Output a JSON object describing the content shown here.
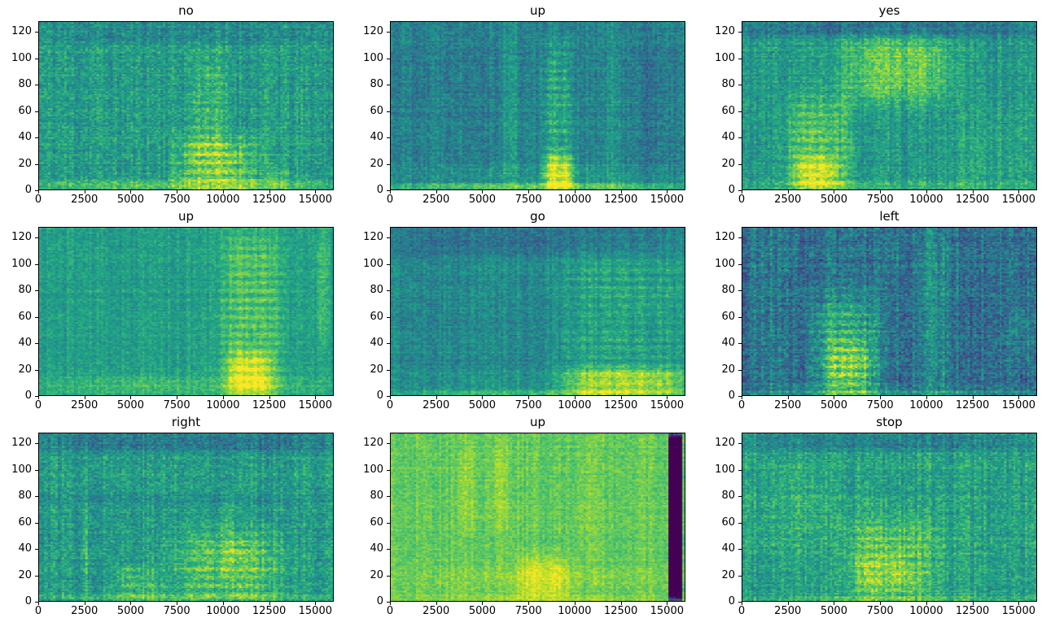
{
  "figure": {
    "background": "#ffffff",
    "colormap": "viridis",
    "rows": 3,
    "cols": 3,
    "colormap_anchors": [
      "#440154",
      "#482475",
      "#414487",
      "#355f8d",
      "#2a788e",
      "#21918c",
      "#22a884",
      "#44bf70",
      "#7ad151",
      "#bddf26",
      "#fde725"
    ]
  },
  "axes_common": {
    "xlim": [
      0,
      16000
    ],
    "ylim": [
      0,
      128
    ],
    "xticks": [
      0,
      2500,
      5000,
      7500,
      10000,
      12500,
      15000
    ],
    "yticks": [
      0,
      20,
      40,
      60,
      80,
      100,
      120
    ]
  },
  "chart_data": [
    {
      "type": "heatmap",
      "title": "no",
      "xlim": [
        0,
        16000
      ],
      "ylim": [
        0,
        128
      ],
      "base": 0.55,
      "noise": 0.13,
      "seed": 11,
      "regions": [
        {
          "x": [
            0,
            16000
          ],
          "y": [
            0,
            7
          ],
          "i": 0.18,
          "soft": 0.3
        },
        {
          "x": [
            7600,
            11800
          ],
          "y": [
            0,
            38
          ],
          "i": 0.3,
          "soft": 0.3,
          "bands": true
        },
        {
          "x": [
            8300,
            10000
          ],
          "y": [
            20,
            100
          ],
          "i": 0.16,
          "soft": 0.3,
          "bands": true
        },
        {
          "x": [
            0,
            16000
          ],
          "y": [
            112,
            128
          ],
          "i": -0.08,
          "soft": 0.3
        },
        {
          "x": [
            12500,
            13500
          ],
          "y": [
            0,
            20
          ],
          "i": 0.1,
          "soft": 0.3
        }
      ]
    },
    {
      "type": "heatmap",
      "title": "up",
      "xlim": [
        0,
        16000
      ],
      "ylim": [
        0,
        128
      ],
      "base": 0.44,
      "noise": 0.11,
      "seed": 22,
      "regions": [
        {
          "x": [
            0,
            16000
          ],
          "y": [
            0,
            5
          ],
          "i": 0.3,
          "soft": 0.3
        },
        {
          "x": [
            8300,
            9900
          ],
          "y": [
            0,
            112
          ],
          "i": 0.22,
          "soft": 0.25,
          "bands": true
        },
        {
          "x": [
            8400,
            9900
          ],
          "y": [
            0,
            26
          ],
          "i": 0.32,
          "soft": 0.3
        },
        {
          "x": [
            6100,
            6900
          ],
          "y": [
            0,
            128
          ],
          "i": 0.1,
          "soft": 0.3
        },
        {
          "x": [
            11600,
            12600
          ],
          "y": [
            0,
            128
          ],
          "i": 0.06,
          "soft": 0.3
        },
        {
          "x": [
            13400,
            15200
          ],
          "y": [
            0,
            128
          ],
          "i": -0.05,
          "soft": 0.3
        },
        {
          "x": [
            0,
            16000
          ],
          "y": [
            5,
            20
          ],
          "i": 0.08,
          "soft": 0.4
        }
      ]
    },
    {
      "type": "heatmap",
      "title": "yes",
      "xlim": [
        0,
        16000
      ],
      "ylim": [
        0,
        128
      ],
      "base": 0.53,
      "noise": 0.12,
      "seed": 33,
      "regions": [
        {
          "x": [
            0,
            16000
          ],
          "y": [
            0,
            6
          ],
          "i": 0.12,
          "soft": 0.3
        },
        {
          "x": [
            2400,
            5900
          ],
          "y": [
            0,
            68
          ],
          "i": 0.26,
          "soft": 0.3,
          "bands": true
        },
        {
          "x": [
            2900,
            5200
          ],
          "y": [
            0,
            24
          ],
          "i": 0.22,
          "soft": 0.3
        },
        {
          "x": [
            5700,
            11200
          ],
          "y": [
            68,
            116
          ],
          "i": 0.22,
          "soft": 0.3
        },
        {
          "x": [
            0,
            16000
          ],
          "y": [
            117,
            128
          ],
          "i": -0.16,
          "soft": 0.3
        },
        {
          "x": [
            11000,
            16000
          ],
          "y": [
            0,
            60
          ],
          "i": 0.05,
          "soft": 0.3
        }
      ]
    },
    {
      "type": "heatmap",
      "title": "up",
      "xlim": [
        0,
        16000
      ],
      "ylim": [
        0,
        128
      ],
      "base": 0.56,
      "noise": 0.09,
      "seed": 44,
      "regions": [
        {
          "x": [
            0,
            16000
          ],
          "y": [
            0,
            14
          ],
          "i": 0.12,
          "soft": 0.4
        },
        {
          "x": [
            9900,
            13300
          ],
          "y": [
            0,
            128
          ],
          "i": 0.22,
          "soft": 0.25,
          "bands": true
        },
        {
          "x": [
            10300,
            12600
          ],
          "y": [
            0,
            32
          ],
          "i": 0.24,
          "soft": 0.3
        },
        {
          "x": [
            15100,
            15800
          ],
          "y": [
            40,
            128
          ],
          "i": 0.1,
          "soft": 0.3
        }
      ]
    },
    {
      "type": "heatmap",
      "title": "go",
      "xlim": [
        0,
        16000
      ],
      "ylim": [
        0,
        128
      ],
      "base": 0.47,
      "noise": 0.1,
      "seed": 55,
      "regions": [
        {
          "x": [
            0,
            16000
          ],
          "y": [
            0,
            4
          ],
          "i": 0.18,
          "soft": 0.3
        },
        {
          "x": [
            0,
            16000
          ],
          "y": [
            108,
            128
          ],
          "i": -0.1,
          "soft": 0.3
        },
        {
          "x": [
            9400,
            15900
          ],
          "y": [
            0,
            112
          ],
          "i": 0.16,
          "soft": 0.25,
          "bands": true
        },
        {
          "x": [
            9600,
            15900
          ],
          "y": [
            0,
            20
          ],
          "i": 0.3,
          "soft": 0.3
        },
        {
          "x": [
            0,
            9000
          ],
          "y": [
            4,
            20
          ],
          "i": 0.05,
          "soft": 0.4
        }
      ]
    },
    {
      "type": "heatmap",
      "title": "left",
      "xlim": [
        0,
        16000
      ],
      "ylim": [
        0,
        128
      ],
      "base": 0.38,
      "noise": 0.15,
      "seed": 66,
      "regions": [
        {
          "x": [
            0,
            16000
          ],
          "y": [
            0,
            4
          ],
          "i": 0.15,
          "soft": 0.3
        },
        {
          "x": [
            3900,
            7300
          ],
          "y": [
            0,
            74
          ],
          "i": 0.34,
          "soft": 0.3,
          "bands": true
        },
        {
          "x": [
            4700,
            6900
          ],
          "y": [
            0,
            40
          ],
          "i": 0.18,
          "soft": 0.3
        },
        {
          "x": [
            700,
            1600
          ],
          "y": [
            0,
            128
          ],
          "i": 0.08,
          "soft": 0.3
        },
        {
          "x": [
            9400,
            11400
          ],
          "y": [
            0,
            128
          ],
          "i": 0.11,
          "soft": 0.3
        },
        {
          "x": [
            14500,
            16000
          ],
          "y": [
            30,
            70
          ],
          "i": 0.08,
          "soft": 0.4
        }
      ]
    },
    {
      "type": "heatmap",
      "title": "right",
      "xlim": [
        0,
        16000
      ],
      "ylim": [
        0,
        128
      ],
      "base": 0.55,
      "noise": 0.13,
      "seed": 77,
      "regions": [
        {
          "x": [
            0,
            16000
          ],
          "y": [
            0,
            5
          ],
          "i": 0.14,
          "soft": 0.3
        },
        {
          "x": [
            0,
            16000
          ],
          "y": [
            114,
            128
          ],
          "i": -0.14,
          "soft": 0.3
        },
        {
          "x": [
            0,
            16000
          ],
          "y": [
            74,
            80
          ],
          "i": -0.07,
          "soft": 0.4
        },
        {
          "x": [
            7900,
            13100
          ],
          "y": [
            0,
            52
          ],
          "i": 0.26,
          "soft": 0.3,
          "bands": true
        },
        {
          "x": [
            4300,
            6700
          ],
          "y": [
            0,
            26
          ],
          "i": 0.18,
          "soft": 0.3,
          "bands": true
        },
        {
          "x": [
            9900,
            10700
          ],
          "y": [
            20,
            80
          ],
          "i": 0.1,
          "soft": 0.3
        },
        {
          "x": [
            2400,
            2700
          ],
          "y": [
            0,
            70
          ],
          "i": 0.08,
          "soft": 0.4
        }
      ]
    },
    {
      "type": "heatmap",
      "title": "up",
      "xlim": [
        0,
        16000
      ],
      "ylim": [
        0,
        128
      ],
      "base": 0.76,
      "noise": 0.08,
      "seed": 88,
      "regions": [
        {
          "x": [
            0,
            16000
          ],
          "y": [
            0,
            5
          ],
          "i": 0.08,
          "soft": 0.3
        },
        {
          "x": [
            6900,
            9700
          ],
          "y": [
            0,
            34
          ],
          "i": 0.14,
          "soft": 0.3
        },
        {
          "x": [
            3800,
            4500
          ],
          "y": [
            55,
            120
          ],
          "i": 0.07,
          "soft": 0.3
        },
        {
          "x": [
            5500,
            6300
          ],
          "y": [
            55,
            120
          ],
          "i": 0.07,
          "soft": 0.3
        },
        {
          "x": [
            10400,
            11000
          ],
          "y": [
            40,
            120
          ],
          "i": 0.05,
          "soft": 0.3
        },
        {
          "x": [
            0,
            16000
          ],
          "y": [
            10,
            25
          ],
          "i": 0.05,
          "soft": 0.4
        },
        {
          "x": [
            15150,
            15850
          ],
          "y": [
            0,
            128
          ],
          "i": -0.95,
          "soft": 0.05
        }
      ]
    },
    {
      "type": "heatmap",
      "title": "stop",
      "xlim": [
        0,
        16000
      ],
      "ylim": [
        0,
        128
      ],
      "base": 0.57,
      "noise": 0.13,
      "seed": 99,
      "regions": [
        {
          "x": [
            0,
            16000
          ],
          "y": [
            0,
            4
          ],
          "i": 0.12,
          "soft": 0.3
        },
        {
          "x": [
            0,
            16000
          ],
          "y": [
            115,
            128
          ],
          "i": -0.15,
          "soft": 0.3
        },
        {
          "x": [
            5900,
            10600
          ],
          "y": [
            0,
            62
          ],
          "i": 0.22,
          "soft": 0.3,
          "bands": true
        },
        {
          "x": [
            6100,
            9200
          ],
          "y": [
            8,
            36
          ],
          "i": 0.12,
          "soft": 0.3
        },
        {
          "x": [
            0,
            5200
          ],
          "y": [
            35,
            105
          ],
          "i": 0.05,
          "soft": 0.4
        },
        {
          "x": [
            5600,
            5800
          ],
          "y": [
            0,
            128
          ],
          "i": -0.08,
          "soft": 0.3
        }
      ]
    }
  ]
}
